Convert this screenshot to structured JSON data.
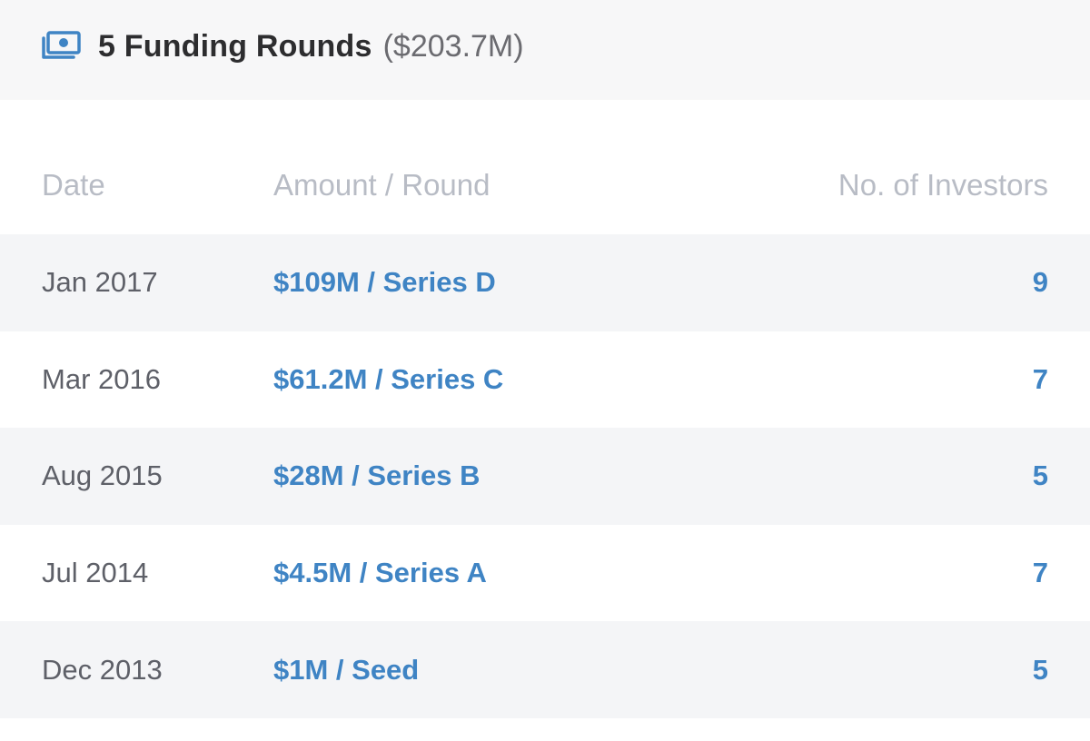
{
  "header": {
    "icon": "money-icon",
    "title": "5 Funding Rounds",
    "total": "($203.7M)"
  },
  "table": {
    "columns": {
      "date": "Date",
      "amount": "Amount / Round",
      "investors": "No. of Investors"
    },
    "rows": [
      {
        "date": "Jan 2017",
        "amount": "$109M / Series D",
        "investors": "9"
      },
      {
        "date": "Mar 2016",
        "amount": "$61.2M / Series C",
        "investors": "7"
      },
      {
        "date": "Aug 2015",
        "amount": "$28M / Series B",
        "investors": "5"
      },
      {
        "date": "Jul 2014",
        "amount": "$4.5M / Series A",
        "investors": "7"
      },
      {
        "date": "Dec 2013",
        "amount": "$1M / Seed",
        "investors": "5"
      }
    ]
  },
  "colors": {
    "accent": "#3f84c4",
    "header_bg": "#f7f7f8",
    "row_shade": "#f4f5f7",
    "muted": "#b8bcc5"
  }
}
